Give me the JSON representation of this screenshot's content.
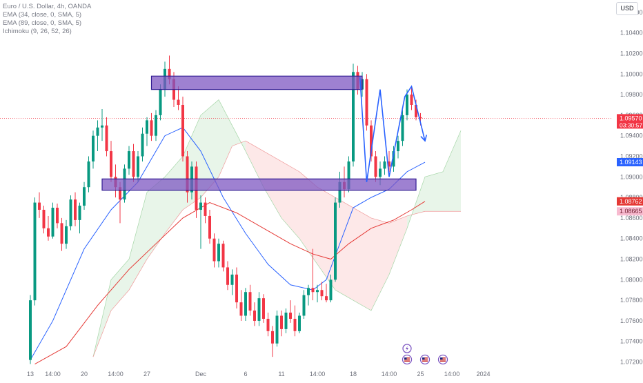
{
  "legend": {
    "title": "Euro / U.S. Dollar, 4h, OANDA",
    "indicator_1": "EMA (34, close, 0, SMA, 5)",
    "indicator_2": "EMA (89, close, 0, SMA, 5)",
    "indicator_3": "Ichimoku (9, 26, 52, 26)"
  },
  "currency_button": "USD",
  "colors": {
    "bull": "#089981",
    "bear": "#f23645",
    "ema34": "#2962ff",
    "ema89": "#e53935",
    "zone_fill": "#7e57c2",
    "zone_stroke": "#311b92",
    "cloud_bull": "#e8f5e9",
    "cloud_bear": "#fde8e8",
    "projection": "#2962ff"
  },
  "chart_data": {
    "type": "candlestick",
    "symbol": "EURUSD",
    "timeframe": "4h",
    "yaxis": {
      "ticks": [
        "1.10600",
        "1.10400",
        "1.10200",
        "1.10000",
        "1.09800",
        "1.09600",
        "1.09400",
        "1.09200",
        "1.09000",
        "1.08800",
        "1.08600",
        "1.08400",
        "1.08200",
        "1.08000",
        "1.07800",
        "1.07600",
        "1.07400",
        "1.07200"
      ],
      "ylim": [
        1.0715,
        1.1072
      ],
      "price_labels": [
        {
          "value": 1.0957,
          "text": "1.09570",
          "sub": "03:30:57",
          "kind": "last"
        },
        {
          "value": 1.09143,
          "text": "1.09143",
          "kind": "ema34"
        },
        {
          "value": 1.08762,
          "text": "1.08762",
          "kind": "ema89"
        },
        {
          "value": 1.08665,
          "text": "1.08665",
          "kind": "cloud"
        }
      ]
    },
    "xaxis": {
      "ticks": [
        {
          "label": "13",
          "x": 0
        },
        {
          "label": "14:00",
          "x": 5
        },
        {
          "label": "20",
          "x": 12
        },
        {
          "label": "14:00",
          "x": 19
        },
        {
          "label": "27",
          "x": 26
        },
        {
          "label": "Dec",
          "x": 38
        },
        {
          "label": "6",
          "x": 48
        },
        {
          "label": "11",
          "x": 56
        },
        {
          "label": "14:00",
          "x": 64
        },
        {
          "label": "18",
          "x": 72
        },
        {
          "label": "14:00",
          "x": 80
        },
        {
          "label": "25",
          "x": 87
        },
        {
          "label": "14:00",
          "x": 94
        },
        {
          "label": "2024",
          "x": 101
        }
      ]
    },
    "candles": [
      {
        "o": 1.0722,
        "h": 1.0785,
        "l": 1.0718,
        "c": 1.078
      },
      {
        "o": 1.078,
        "h": 1.088,
        "l": 1.0775,
        "c": 1.0875
      },
      {
        "o": 1.0875,
        "h": 1.0885,
        "l": 1.086,
        "c": 1.0868
      },
      {
        "o": 1.0868,
        "h": 1.0872,
        "l": 1.0845,
        "c": 1.085
      },
      {
        "o": 1.085,
        "h": 1.0862,
        "l": 1.0838,
        "c": 1.0842
      },
      {
        "o": 1.0842,
        "h": 1.0875,
        "l": 1.084,
        "c": 1.087
      },
      {
        "o": 1.087,
        "h": 1.0874,
        "l": 1.085,
        "c": 1.0855
      },
      {
        "o": 1.0855,
        "h": 1.086,
        "l": 1.0828,
        "c": 1.0835
      },
      {
        "o": 1.0835,
        "h": 1.0858,
        "l": 1.083,
        "c": 1.0852
      },
      {
        "o": 1.0852,
        "h": 1.0882,
        "l": 1.0848,
        "c": 1.0878
      },
      {
        "o": 1.0878,
        "h": 1.0885,
        "l": 1.0852,
        "c": 1.0858
      },
      {
        "o": 1.0858,
        "h": 1.0875,
        "l": 1.0845,
        "c": 1.0872
      },
      {
        "o": 1.0872,
        "h": 1.0895,
        "l": 1.0868,
        "c": 1.089
      },
      {
        "o": 1.089,
        "h": 1.092,
        "l": 1.0885,
        "c": 1.0915
      },
      {
        "o": 1.0915,
        "h": 1.0945,
        "l": 1.0908,
        "c": 1.094
      },
      {
        "o": 1.094,
        "h": 1.0955,
        "l": 1.0925,
        "c": 1.0948
      },
      {
        "o": 1.0948,
        "h": 1.0966,
        "l": 1.0935,
        "c": 1.095
      },
      {
        "o": 1.095,
        "h": 1.0958,
        "l": 1.092,
        "c": 1.0925
      },
      {
        "o": 1.0925,
        "h": 1.0935,
        "l": 1.0895,
        "c": 1.09
      },
      {
        "o": 1.09,
        "h": 1.0912,
        "l": 1.088,
        "c": 1.089
      },
      {
        "o": 1.089,
        "h": 1.0895,
        "l": 1.0855,
        "c": 1.0878
      },
      {
        "o": 1.0878,
        "h": 1.0912,
        "l": 1.0875,
        "c": 1.0908
      },
      {
        "o": 1.0908,
        "h": 1.093,
        "l": 1.0902,
        "c": 1.0925
      },
      {
        "o": 1.0925,
        "h": 1.0932,
        "l": 1.0895,
        "c": 1.09
      },
      {
        "o": 1.09,
        "h": 1.0925,
        "l": 1.0895,
        "c": 1.092
      },
      {
        "o": 1.092,
        "h": 1.0948,
        "l": 1.0915,
        "c": 1.0942
      },
      {
        "o": 1.0942,
        "h": 1.0958,
        "l": 1.093,
        "c": 1.0955
      },
      {
        "o": 1.0955,
        "h": 1.0962,
        "l": 1.0935,
        "c": 1.094
      },
      {
        "o": 1.094,
        "h": 1.0965,
        "l": 1.0935,
        "c": 1.096
      },
      {
        "o": 1.096,
        "h": 1.099,
        "l": 1.0955,
        "c": 1.0985
      },
      {
        "o": 1.0985,
        "h": 1.1012,
        "l": 1.0978,
        "c": 1.1005
      },
      {
        "o": 1.1005,
        "h": 1.1018,
        "l": 1.099,
        "c": 1.0995
      },
      {
        "o": 1.0995,
        "h": 1.1002,
        "l": 1.0968,
        "c": 1.0975
      },
      {
        "o": 1.0975,
        "h": 1.0988,
        "l": 1.0965,
        "c": 1.097
      },
      {
        "o": 1.097,
        "h": 1.0978,
        "l": 1.0915,
        "c": 1.092
      },
      {
        "o": 1.092,
        "h": 1.0925,
        "l": 1.0875,
        "c": 1.0885
      },
      {
        "o": 1.0885,
        "h": 1.0915,
        "l": 1.0878,
        "c": 1.091
      },
      {
        "o": 1.091,
        "h": 1.0915,
        "l": 1.086,
        "c": 1.0868
      },
      {
        "o": 1.0868,
        "h": 1.0882,
        "l": 1.083,
        "c": 1.0875
      },
      {
        "o": 1.0875,
        "h": 1.088,
        "l": 1.0855,
        "c": 1.0862
      },
      {
        "o": 1.0862,
        "h": 1.0868,
        "l": 1.0835,
        "c": 1.084
      },
      {
        "o": 1.084,
        "h": 1.0845,
        "l": 1.0812,
        "c": 1.0818
      },
      {
        "o": 1.0818,
        "h": 1.084,
        "l": 1.0812,
        "c": 1.0835
      },
      {
        "o": 1.0835,
        "h": 1.0838,
        "l": 1.0808,
        "c": 1.0812
      },
      {
        "o": 1.0812,
        "h": 1.0818,
        "l": 1.079,
        "c": 1.0795
      },
      {
        "o": 1.0795,
        "h": 1.081,
        "l": 1.0785,
        "c": 1.0805
      },
      {
        "o": 1.0805,
        "h": 1.0812,
        "l": 1.0772,
        "c": 1.0778
      },
      {
        "o": 1.0778,
        "h": 1.079,
        "l": 1.076,
        "c": 1.0765
      },
      {
        "o": 1.0765,
        "h": 1.0792,
        "l": 1.076,
        "c": 1.0788
      },
      {
        "o": 1.0788,
        "h": 1.0795,
        "l": 1.0765,
        "c": 1.077
      },
      {
        "o": 1.077,
        "h": 1.0778,
        "l": 1.0755,
        "c": 1.076
      },
      {
        "o": 1.076,
        "h": 1.0788,
        "l": 1.0755,
        "c": 1.0782
      },
      {
        "o": 1.0782,
        "h": 1.0786,
        "l": 1.0758,
        "c": 1.0762
      },
      {
        "o": 1.0762,
        "h": 1.0768,
        "l": 1.0745,
        "c": 1.075
      },
      {
        "o": 1.075,
        "h": 1.0755,
        "l": 1.0725,
        "c": 1.0738
      },
      {
        "o": 1.0738,
        "h": 1.077,
        "l": 1.0735,
        "c": 1.0765
      },
      {
        "o": 1.0765,
        "h": 1.077,
        "l": 1.0745,
        "c": 1.0752
      },
      {
        "o": 1.0752,
        "h": 1.0772,
        "l": 1.0748,
        "c": 1.0768
      },
      {
        "o": 1.0768,
        "h": 1.078,
        "l": 1.0758,
        "c": 1.0762
      },
      {
        "o": 1.0762,
        "h": 1.0775,
        "l": 1.0745,
        "c": 1.075
      },
      {
        "o": 1.075,
        "h": 1.0768,
        "l": 1.0748,
        "c": 1.0765
      },
      {
        "o": 1.0765,
        "h": 1.079,
        "l": 1.0762,
        "c": 1.0785
      },
      {
        "o": 1.0785,
        "h": 1.0795,
        "l": 1.0775,
        "c": 1.0792
      },
      {
        "o": 1.0792,
        "h": 1.083,
        "l": 1.078,
        "c": 1.0788
      },
      {
        "o": 1.0788,
        "h": 1.0795,
        "l": 1.0778,
        "c": 1.079
      },
      {
        "o": 1.079,
        "h": 1.0798,
        "l": 1.078,
        "c": 1.0784
      },
      {
        "o": 1.0784,
        "h": 1.0796,
        "l": 1.0778,
        "c": 1.078
      },
      {
        "o": 1.078,
        "h": 1.0805,
        "l": 1.0778,
        "c": 1.08
      },
      {
        "o": 1.08,
        "h": 1.088,
        "l": 1.0798,
        "c": 1.0875
      },
      {
        "o": 1.0875,
        "h": 1.0905,
        "l": 1.087,
        "c": 1.0895
      },
      {
        "o": 1.0895,
        "h": 1.091,
        "l": 1.088,
        "c": 1.0888
      },
      {
        "o": 1.0888,
        "h": 1.092,
        "l": 1.0885,
        "c": 1.0915
      },
      {
        "o": 1.0915,
        "h": 1.101,
        "l": 1.091,
        "c": 1.1002
      },
      {
        "o": 1.1002,
        "h": 1.1008,
        "l": 1.098,
        "c": 1.0985
      },
      {
        "o": 1.0985,
        "h": 1.1002,
        "l": 1.0978,
        "c": 1.0995
      },
      {
        "o": 1.0995,
        "h": 1.1,
        "l": 1.0945,
        "c": 1.095
      },
      {
        "o": 1.095,
        "h": 1.0955,
        "l": 1.0915,
        "c": 1.092
      },
      {
        "o": 1.092,
        "h": 1.0925,
        "l": 1.0895,
        "c": 1.09
      },
      {
        "o": 1.09,
        "h": 1.0915,
        "l": 1.0892,
        "c": 1.0908
      },
      {
        "o": 1.0908,
        "h": 1.092,
        "l": 1.0902,
        "c": 1.0915
      },
      {
        "o": 1.0915,
        "h": 1.0925,
        "l": 1.0905,
        "c": 1.091
      },
      {
        "o": 1.091,
        "h": 1.093,
        "l": 1.0905,
        "c": 1.0925
      },
      {
        "o": 1.0925,
        "h": 1.094,
        "l": 1.0918,
        "c": 1.0935
      },
      {
        "o": 1.0935,
        "h": 1.0965,
        "l": 1.093,
        "c": 1.096
      },
      {
        "o": 1.096,
        "h": 1.0985,
        "l": 1.0955,
        "c": 1.098
      },
      {
        "o": 1.098,
        "h": 1.0988,
        "l": 1.0965,
        "c": 1.097
      },
      {
        "o": 1.097,
        "h": 1.0975,
        "l": 1.0955,
        "c": 1.0958
      },
      {
        "o": 1.0958,
        "h": 1.0962,
        "l": 1.095,
        "c": 1.0957
      }
    ],
    "zones": [
      {
        "x0": 27,
        "x1": 74,
        "top": 1.0998,
        "bottom": 1.0985
      },
      {
        "x0": 16,
        "x1": 86,
        "top": 1.0898,
        "bottom": 1.0887
      }
    ],
    "projection_path": [
      {
        "x": 73.5,
        "y": 1.0997
      },
      {
        "x": 75,
        "y": 1.0895
      },
      {
        "x": 78,
        "y": 1.0985
      },
      {
        "x": 80,
        "y": 1.09
      },
      {
        "x": 83.5,
        "y": 1.0978
      },
      {
        "x": 85,
        "y": 1.0988
      },
      {
        "x": 88,
        "y": 1.0935
      }
    ],
    "ema34": [
      {
        "x": 0,
        "y": 1.0722
      },
      {
        "x": 5,
        "y": 1.076
      },
      {
        "x": 12,
        "y": 1.083
      },
      {
        "x": 18,
        "y": 1.0868
      },
      {
        "x": 24,
        "y": 1.0895
      },
      {
        "x": 30,
        "y": 1.094
      },
      {
        "x": 34,
        "y": 1.0948
      },
      {
        "x": 38,
        "y": 1.0925
      },
      {
        "x": 43,
        "y": 1.088
      },
      {
        "x": 48,
        "y": 1.0845
      },
      {
        "x": 53,
        "y": 1.0815
      },
      {
        "x": 58,
        "y": 1.0795
      },
      {
        "x": 63,
        "y": 1.079
      },
      {
        "x": 66,
        "y": 1.08
      },
      {
        "x": 69,
        "y": 1.0835
      },
      {
        "x": 72,
        "y": 1.087
      },
      {
        "x": 76,
        "y": 1.088
      },
      {
        "x": 80,
        "y": 1.0888
      },
      {
        "x": 84,
        "y": 1.0905
      },
      {
        "x": 88,
        "y": 1.09143
      }
    ],
    "ema89": [
      {
        "x": 1,
        "y": 1.0718
      },
      {
        "x": 8,
        "y": 1.0735
      },
      {
        "x": 15,
        "y": 1.0775
      },
      {
        "x": 22,
        "y": 1.081
      },
      {
        "x": 28,
        "y": 1.0835
      },
      {
        "x": 34,
        "y": 1.086
      },
      {
        "x": 40,
        "y": 1.0875
      },
      {
        "x": 46,
        "y": 1.0865
      },
      {
        "x": 52,
        "y": 1.085
      },
      {
        "x": 58,
        "y": 1.0835
      },
      {
        "x": 63,
        "y": 1.0825
      },
      {
        "x": 67,
        "y": 1.082
      },
      {
        "x": 71,
        "y": 1.0835
      },
      {
        "x": 76,
        "y": 1.085
      },
      {
        "x": 81,
        "y": 1.0858
      },
      {
        "x": 85,
        "y": 1.0868
      },
      {
        "x": 88,
        "y": 1.08762
      }
    ],
    "cloud": [
      {
        "x": 14,
        "span_a": 1.0725,
        "span_b": 1.0725
      },
      {
        "x": 18,
        "span_a": 1.08,
        "span_b": 1.077
      },
      {
        "x": 22,
        "span_a": 1.082,
        "span_b": 1.079
      },
      {
        "x": 26,
        "span_a": 1.0885,
        "span_b": 1.082
      },
      {
        "x": 30,
        "span_a": 1.09,
        "span_b": 1.0845
      },
      {
        "x": 34,
        "span_a": 1.092,
        "span_b": 1.0868
      },
      {
        "x": 38,
        "span_a": 1.096,
        "span_b": 1.088
      },
      {
        "x": 42,
        "span_a": 1.0975,
        "span_b": 1.09
      },
      {
        "x": 45,
        "span_a": 1.095,
        "span_b": 1.093
      },
      {
        "x": 48,
        "span_a": 1.0925,
        "span_b": 1.0935
      },
      {
        "x": 52,
        "span_a": 1.089,
        "span_b": 1.0925
      },
      {
        "x": 56,
        "span_a": 1.086,
        "span_b": 1.0915
      },
      {
        "x": 60,
        "span_a": 1.084,
        "span_b": 1.0905
      },
      {
        "x": 64,
        "span_a": 1.0815,
        "span_b": 1.089
      },
      {
        "x": 68,
        "span_a": 1.079,
        "span_b": 1.088
      },
      {
        "x": 72,
        "span_a": 1.078,
        "span_b": 1.087
      },
      {
        "x": 76,
        "span_a": 1.077,
        "span_b": 1.086
      },
      {
        "x": 80,
        "span_a": 1.0805,
        "span_b": 1.0855
      },
      {
        "x": 84,
        "span_a": 1.085,
        "span_b": 1.0862
      },
      {
        "x": 88,
        "span_a": 1.09,
        "span_b": 1.08665
      },
      {
        "x": 92,
        "span_a": 1.0905,
        "span_b": 1.08665
      },
      {
        "x": 96,
        "span_a": 1.0945,
        "span_b": 1.08665
      }
    ]
  },
  "events": [
    {
      "icon": "lightning-icon",
      "x": 84,
      "row": 0
    },
    {
      "icon": "us-flag-icon",
      "x": 84,
      "row": 1
    },
    {
      "icon": "us-flag-icon",
      "x": 88,
      "row": 1
    },
    {
      "icon": "us-flag-icon",
      "x": 92,
      "row": 1
    }
  ]
}
